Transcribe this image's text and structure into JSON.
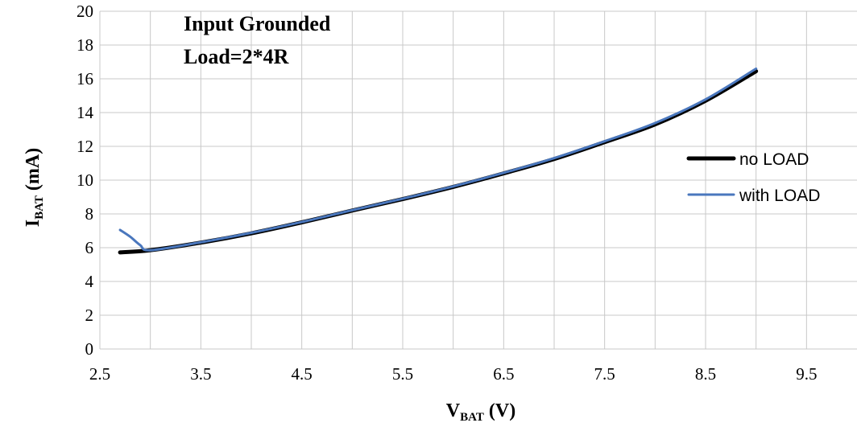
{
  "chart_data": {
    "type": "line",
    "x_axis": {
      "label_main": "V",
      "label_sub": "BAT",
      "label_unit": " (V)",
      "range": [
        2.5,
        10.0
      ],
      "ticks": [
        2.5,
        3.5,
        4.5,
        5.5,
        6.5,
        7.5,
        8.5,
        9.5
      ],
      "tick_labels": [
        "2.5",
        "3.5",
        "4.5",
        "5.5",
        "6.5",
        "7.5",
        "8.5",
        "9.5"
      ],
      "grid_step": 0.5
    },
    "y_axis": {
      "label_main": "I",
      "label_sub": "BAT",
      "label_unit": " (mA)",
      "range": [
        0,
        20
      ],
      "ticks": [
        0,
        2,
        4,
        6,
        8,
        10,
        12,
        14,
        16,
        18,
        20
      ],
      "tick_labels": [
        "0",
        "2",
        "4",
        "6",
        "8",
        "10",
        "12",
        "14",
        "16",
        "18",
        "20"
      ]
    },
    "grid": true,
    "legend_position": "right",
    "annotations": [
      "Input Grounded",
      "Load=2*4R"
    ],
    "series": [
      {
        "name": "no LOAD",
        "color": "#000000",
        "points": [
          [
            2.7,
            5.72
          ],
          [
            3.0,
            5.85
          ],
          [
            3.5,
            6.3
          ],
          [
            4.0,
            6.85
          ],
          [
            4.5,
            7.5
          ],
          [
            5.0,
            8.2
          ],
          [
            5.5,
            8.88
          ],
          [
            6.0,
            9.6
          ],
          [
            6.5,
            10.4
          ],
          [
            7.0,
            11.25
          ],
          [
            7.5,
            12.25
          ],
          [
            8.0,
            13.3
          ],
          [
            8.5,
            14.7
          ],
          [
            9.0,
            16.45
          ]
        ]
      },
      {
        "name": "with LOAD",
        "color": "#4a77bd",
        "points": [
          [
            2.7,
            7.05
          ],
          [
            2.8,
            6.65
          ],
          [
            2.9,
            6.15
          ],
          [
            3.0,
            5.85
          ],
          [
            3.5,
            6.32
          ],
          [
            4.0,
            6.88
          ],
          [
            4.5,
            7.52
          ],
          [
            5.0,
            8.22
          ],
          [
            5.5,
            8.9
          ],
          [
            6.0,
            9.63
          ],
          [
            6.5,
            10.43
          ],
          [
            7.0,
            11.3
          ],
          [
            7.5,
            12.3
          ],
          [
            8.0,
            13.38
          ],
          [
            8.5,
            14.78
          ],
          [
            9.0,
            16.6
          ]
        ]
      }
    ]
  }
}
